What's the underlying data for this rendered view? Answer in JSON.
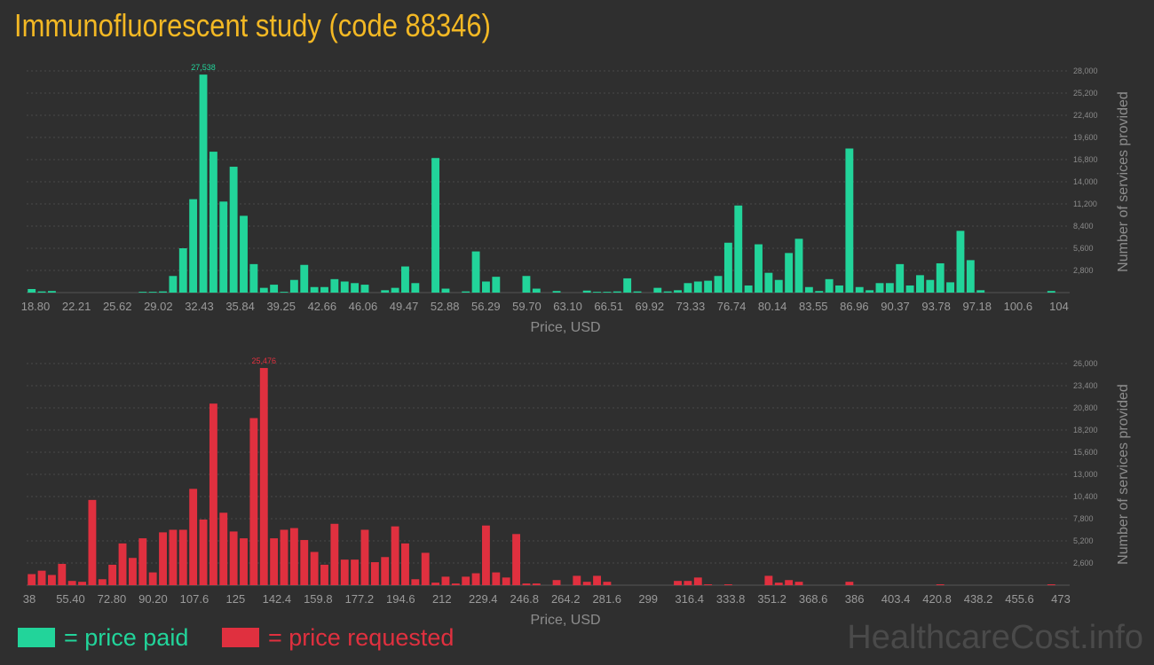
{
  "page": {
    "title": "Immunofluorescent study (code 88346)",
    "brand": "HealthcareCost.info",
    "legend": [
      {
        "label": "= price paid",
        "color": "#22d49a"
      },
      {
        "label": "= price requested",
        "color": "#e0303f"
      }
    ]
  },
  "chart_data": [
    {
      "type": "bar",
      "title": "price paid",
      "xlabel": "Price, USD",
      "ylabel": "Number of services provided",
      "color": "#22d49a",
      "ylim": [
        0,
        28000
      ],
      "yticks": [
        2800,
        5600,
        8400,
        11200,
        14000,
        16800,
        19600,
        22400,
        25200,
        28000
      ],
      "ytick_labels": [
        "2,800",
        "5,600",
        "8,400",
        "11,200",
        "14,000",
        "16,800",
        "19,600",
        "22,400",
        "25,200",
        "28,000"
      ],
      "xtick_labels": [
        "18.80",
        "22.21",
        "25.62",
        "29.02",
        "32.43",
        "35.84",
        "39.25",
        "42.66",
        "46.06",
        "49.47",
        "52.88",
        "56.29",
        "59.70",
        "63.10",
        "66.51",
        "69.92",
        "73.33",
        "76.74",
        "80.14",
        "83.55",
        "86.96",
        "90.37",
        "93.78",
        "97.18",
        "100.6",
        "104"
      ],
      "peak_label": "27,538",
      "values": [
        450,
        150,
        200,
        0,
        0,
        0,
        0,
        0,
        0,
        0,
        0,
        100,
        100,
        150,
        2100,
        5600,
        11800,
        27538,
        17800,
        11500,
        15900,
        9700,
        3600,
        600,
        1000,
        100,
        1600,
        3500,
        700,
        700,
        1700,
        1400,
        1200,
        1000,
        0,
        300,
        600,
        3300,
        1200,
        0,
        17000,
        500,
        0,
        150,
        5200,
        1400,
        2000,
        0,
        0,
        2100,
        500,
        0,
        200,
        0,
        0,
        250,
        100,
        100,
        150,
        1800,
        150,
        0,
        600,
        150,
        300,
        1200,
        1400,
        1500,
        2100,
        6300,
        11000,
        900,
        6100,
        2500,
        1600,
        5000,
        6800,
        700,
        200,
        1700,
        900,
        18200,
        700,
        300,
        1200,
        1200,
        3600,
        900,
        2200,
        1600,
        3700,
        1300,
        7800,
        4100,
        300,
        0,
        0,
        0,
        0,
        0,
        0,
        200
      ]
    },
    {
      "type": "bar",
      "title": "price requested",
      "xlabel": "Price, USD",
      "ylabel": "Number of services provided",
      "color": "#e0303f",
      "ylim": [
        0,
        26000
      ],
      "yticks": [
        2600,
        5200,
        7800,
        10400,
        13000,
        15600,
        18200,
        20800,
        23400,
        26000
      ],
      "ytick_labels": [
        "2,600",
        "5,200",
        "7,800",
        "10,400",
        "13,000",
        "15,600",
        "18,200",
        "20,800",
        "23,400",
        "26,000"
      ],
      "xtick_labels": [
        "38",
        "55.40",
        "72.80",
        "90.20",
        "107.6",
        "125",
        "142.4",
        "159.8",
        "177.2",
        "194.6",
        "212",
        "229.4",
        "246.8",
        "264.2",
        "281.6",
        "299",
        "316.4",
        "333.8",
        "351.2",
        "368.6",
        "386",
        "403.4",
        "420.8",
        "438.2",
        "455.6",
        "473"
      ],
      "peak_label": "25,476",
      "values": [
        1300,
        1700,
        1200,
        2500,
        500,
        400,
        10000,
        700,
        2400,
        4900,
        3200,
        5500,
        1500,
        6200,
        6500,
        6500,
        11300,
        7700,
        21300,
        8500,
        6300,
        5500,
        19600,
        25476,
        5500,
        6500,
        6700,
        5300,
        3900,
        2400,
        7200,
        3000,
        3000,
        6500,
        2700,
        3300,
        6900,
        4900,
        700,
        3800,
        300,
        1000,
        200,
        1000,
        1400,
        7000,
        1500,
        900,
        6000,
        200,
        200,
        0,
        600,
        0,
        1100,
        400,
        1100,
        400,
        0,
        0,
        0,
        0,
        0,
        0,
        500,
        500,
        900,
        100,
        0,
        100,
        0,
        0,
        0,
        1100,
        300,
        600,
        400,
        0,
        0,
        0,
        0,
        400,
        0,
        0,
        0,
        0,
        0,
        0,
        0,
        0,
        100,
        0,
        0,
        0,
        0,
        0,
        0,
        0,
        0,
        0,
        0,
        100
      ]
    }
  ]
}
